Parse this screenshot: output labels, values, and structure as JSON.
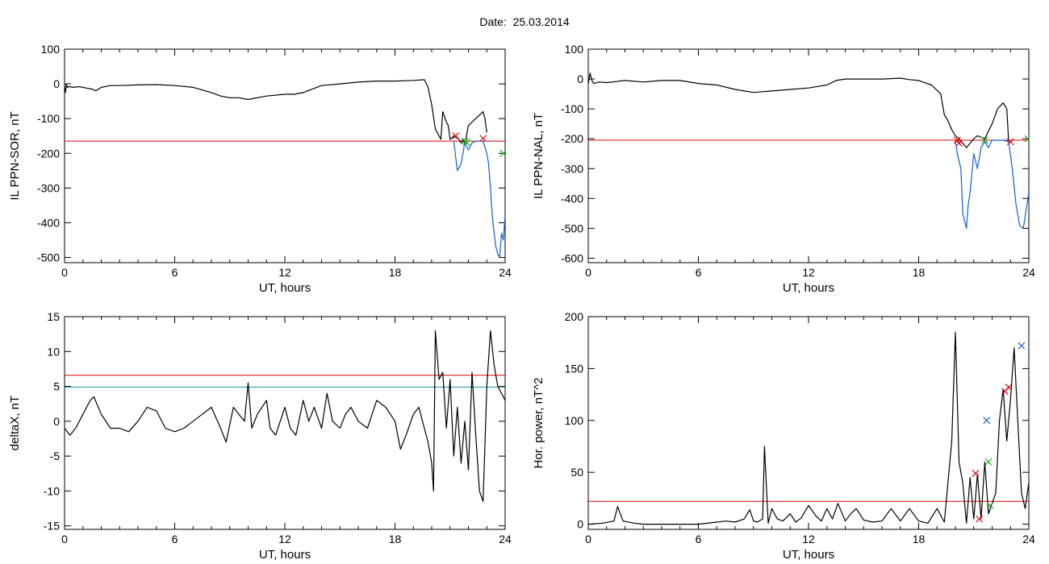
{
  "title": "Date:  25.03.2014",
  "chart_data": [
    {
      "type": "line",
      "xlabel": "UT, hours",
      "ylabel": "IL PPN-SOR, nT",
      "xlim": [
        0,
        24
      ],
      "ylim": [
        -515,
        100
      ],
      "xticks": [
        0,
        6,
        12,
        18,
        24
      ],
      "yticks": [
        100,
        0,
        -100,
        -200,
        -300,
        -400,
        -500
      ],
      "threshold": {
        "value": -165,
        "color": "#e00000"
      },
      "series": [
        {
          "color": "#000000",
          "x": [
            0,
            0.05,
            0.1,
            0.15,
            0.25,
            0.5,
            0.8,
            1.2,
            1.5,
            1.7,
            2.0,
            2.5,
            3,
            4,
            5,
            6,
            7,
            8,
            8.5,
            9,
            9.5,
            10,
            10.5,
            11,
            12,
            12.5,
            13,
            13.5,
            14,
            15,
            16,
            17,
            18,
            19,
            19.6,
            19.8,
            20.0,
            20.2,
            20.4,
            20.5,
            20.6,
            20.8,
            20.9,
            21.0,
            21.2,
            21.5,
            21.6,
            21.7,
            21.8,
            22.0,
            22.2,
            22.4,
            22.5,
            22.7,
            22.8,
            22.9,
            23.0
          ],
          "y": [
            -5,
            -25,
            0,
            -10,
            -8,
            -10,
            -8,
            -12,
            -15,
            -20,
            -10,
            -5,
            -5,
            -3,
            -2,
            -5,
            -10,
            -25,
            -35,
            -40,
            -40,
            -45,
            -40,
            -35,
            -30,
            -30,
            -25,
            -15,
            -5,
            0,
            5,
            8,
            8,
            10,
            12,
            -10,
            -60,
            -130,
            -150,
            -160,
            -80,
            -110,
            -120,
            -160,
            -150,
            -160,
            -170,
            -160,
            -175,
            -120,
            -110,
            -100,
            -95,
            -85,
            -80,
            -100,
            -140
          ]
        },
        {
          "color": "#1060d0",
          "x": [
            21.2,
            21.4,
            21.6,
            21.8,
            22.0,
            22.2,
            22.4,
            22.6,
            22.8,
            23.0,
            23.1,
            23.2,
            23.3,
            23.4,
            23.5,
            23.6,
            23.7,
            23.8,
            23.9,
            24.0
          ],
          "y": [
            -165,
            -250,
            -230,
            -170,
            -190,
            -170,
            -165,
            -165,
            -165,
            -200,
            -230,
            -300,
            -380,
            -430,
            -470,
            -490,
            -500,
            -430,
            -450,
            -380
          ]
        }
      ],
      "markers": [
        {
          "x": 21.3,
          "y": -150,
          "color": "#e00000"
        },
        {
          "x": 21.8,
          "y": -165,
          "color": "#20b020"
        },
        {
          "x": 21.9,
          "y": -168,
          "color": "#20b020"
        },
        {
          "x": 22.8,
          "y": -157,
          "color": "#e00000"
        },
        {
          "x": 23.9,
          "y": -200,
          "color": "#20b020"
        }
      ]
    },
    {
      "type": "line",
      "xlabel": "UT, hours",
      "ylabel": "IL PPN-NAL, nT",
      "xlim": [
        0,
        24
      ],
      "ylim": [
        -615,
        100
      ],
      "xticks": [
        0,
        6,
        12,
        18,
        24
      ],
      "yticks": [
        100,
        0,
        -100,
        -200,
        -300,
        -400,
        -500,
        -600
      ],
      "threshold": {
        "value": -205,
        "color": "#e00000"
      },
      "series": [
        {
          "color": "#000000",
          "x": [
            0,
            0.1,
            0.2,
            0.3,
            0.6,
            1,
            2,
            3,
            4,
            5,
            6,
            7,
            8,
            8.5,
            9,
            10,
            11,
            12,
            12.5,
            13,
            13.5,
            14,
            15,
            16,
            17,
            17.5,
            18,
            18.7,
            19.2,
            19.4,
            19.6,
            19.8,
            20.0,
            20.2,
            20.6,
            21.0,
            21.2,
            21.6,
            22.0,
            22.3,
            22.6,
            22.8,
            22.9
          ],
          "y": [
            -15,
            20,
            -5,
            -15,
            -10,
            -12,
            -5,
            -10,
            -5,
            -5,
            -15,
            -20,
            -35,
            -40,
            -45,
            -40,
            -35,
            -30,
            -25,
            -20,
            -5,
            0,
            0,
            0,
            3,
            -2,
            -5,
            -20,
            -50,
            -120,
            -140,
            -170,
            -190,
            -200,
            -230,
            -200,
            -190,
            -200,
            -150,
            -100,
            -80,
            -100,
            -210
          ]
        },
        {
          "color": "#1060d0",
          "x": [
            20.0,
            20.1,
            20.3,
            20.4,
            20.6,
            20.7,
            20.8,
            21.0,
            21.2,
            21.4,
            21.6,
            21.8,
            22.0,
            22.6,
            22.9,
            23.1,
            23.3,
            23.5,
            23.7,
            23.9,
            24.0
          ],
          "y": [
            -205,
            -250,
            -300,
            -450,
            -500,
            -420,
            -380,
            -250,
            -300,
            -230,
            -210,
            -230,
            -205,
            -205,
            -210,
            -300,
            -420,
            -490,
            -500,
            -420,
            -380
          ]
        }
      ],
      "markers": [
        {
          "x": 20.1,
          "y": -205,
          "color": "#e00000"
        },
        {
          "x": 20.2,
          "y": -215,
          "color": "#e00000"
        },
        {
          "x": 21.6,
          "y": -205,
          "color": "#20b020"
        },
        {
          "x": 23.0,
          "y": -210,
          "color": "#e00000"
        },
        {
          "x": 23.95,
          "y": -200,
          "color": "#20b020"
        }
      ]
    },
    {
      "type": "line",
      "xlabel": "UT, hours",
      "ylabel": "deltaX, nT",
      "xlim": [
        0,
        24
      ],
      "ylim": [
        -15.5,
        15
      ],
      "xticks": [
        0,
        6,
        12,
        18,
        24
      ],
      "yticks": [
        15,
        10,
        5,
        0,
        -5,
        -10,
        -15
      ],
      "thresholds": [
        {
          "value": 6.6,
          "color": "#e00000"
        },
        {
          "value": 4.9,
          "color": "#2090a0"
        }
      ],
      "series": [
        {
          "color": "#000000",
          "x": [
            0,
            0.3,
            0.6,
            1.0,
            1.4,
            1.6,
            2.0,
            2.5,
            3.0,
            3.5,
            4.0,
            4.5,
            5.0,
            5.5,
            6.0,
            6.5,
            7.0,
            7.5,
            8.0,
            8.5,
            8.8,
            9.2,
            9.5,
            9.8,
            10.0,
            10.2,
            10.5,
            11.0,
            11.2,
            11.5,
            12.0,
            12.3,
            12.6,
            13.0,
            13.3,
            13.6,
            14.0,
            14.3,
            14.6,
            15.0,
            15.3,
            15.6,
            16.0,
            16.5,
            17.0,
            17.5,
            18.0,
            18.3,
            18.6,
            19.0,
            19.3,
            19.6,
            19.8,
            20.0,
            20.1,
            20.2,
            20.4,
            20.6,
            20.8,
            21.0,
            21.2,
            21.4,
            21.6,
            21.8,
            22.0,
            22.2,
            22.4,
            22.6,
            22.8,
            23.0,
            23.2,
            23.4,
            23.6,
            23.8,
            24.0
          ],
          "y": [
            -1,
            -2,
            -1,
            1,
            3,
            3.5,
            1,
            -1,
            -1,
            -1.5,
            0,
            2,
            1.5,
            -1,
            -1.5,
            -1,
            0,
            1,
            2,
            -1,
            -3,
            2,
            1,
            0,
            5.5,
            -1,
            1,
            3,
            -1,
            -2,
            2,
            -1,
            -2,
            3,
            0,
            2,
            -1,
            4,
            0,
            -1,
            1,
            2,
            0,
            -1,
            3,
            2,
            0,
            -4,
            -2,
            1,
            2,
            -1,
            -3,
            -6,
            -10,
            13,
            6,
            7,
            -1,
            6,
            -5,
            2,
            -6,
            0,
            -7,
            7,
            -2,
            -10,
            -11.5,
            5,
            13,
            8,
            5,
            4,
            3
          ]
        }
      ],
      "markers": []
    },
    {
      "type": "line",
      "xlabel": "UT, hours",
      "ylabel": "Hor. power, nT^2",
      "xlim": [
        0,
        24
      ],
      "ylim": [
        -5,
        200
      ],
      "xticks": [
        0,
        6,
        12,
        18,
        24
      ],
      "yticks": [
        200,
        150,
        100,
        50,
        0
      ],
      "threshold": {
        "value": 22,
        "color": "#e00000"
      },
      "series": [
        {
          "color": "#000000",
          "x": [
            0,
            0.8,
            1.4,
            1.6,
            1.9,
            2.5,
            3,
            4,
            5,
            6,
            7,
            7.5,
            8,
            8.5,
            8.8,
            9.0,
            9.2,
            9.5,
            9.6,
            9.8,
            10.0,
            10.3,
            10.6,
            11.0,
            11.3,
            11.6,
            12.0,
            12.4,
            12.7,
            13.0,
            13.3,
            13.6,
            14.0,
            14.3,
            14.6,
            15.0,
            15.5,
            16.0,
            16.5,
            17.0,
            17.5,
            18.0,
            18.5,
            19.0,
            19.4,
            19.8,
            20.0,
            20.2,
            20.4,
            20.6,
            20.8,
            21.0,
            21.2,
            21.4,
            21.6,
            21.8,
            22.0,
            22.2,
            22.4,
            22.6,
            22.8,
            23.0,
            23.2,
            23.4,
            23.6,
            23.8,
            24.0
          ],
          "y": [
            0,
            1,
            3,
            17,
            3,
            1,
            0,
            0,
            0,
            0,
            2,
            3,
            2,
            5,
            14,
            3,
            2,
            5,
            75,
            1,
            15,
            5,
            3,
            10,
            2,
            6,
            18,
            8,
            3,
            15,
            5,
            20,
            3,
            10,
            15,
            4,
            2,
            3,
            15,
            3,
            15,
            3,
            1,
            15,
            2,
            80,
            185,
            60,
            40,
            1,
            45,
            5,
            48,
            5,
            60,
            10,
            20,
            30,
            100,
            130,
            80,
            120,
            170,
            100,
            30,
            15,
            40
          ]
        }
      ],
      "markers": [
        {
          "x": 21.1,
          "y": 49,
          "color": "#e00000"
        },
        {
          "x": 21.3,
          "y": 5,
          "color": "#e00000"
        },
        {
          "x": 21.7,
          "y": 100,
          "color": "#2060d0"
        },
        {
          "x": 21.8,
          "y": 60,
          "color": "#20b020"
        },
        {
          "x": 21.9,
          "y": 18,
          "color": "#20b020"
        },
        {
          "x": 22.7,
          "y": 128,
          "color": "#e00000"
        },
        {
          "x": 22.9,
          "y": 132,
          "color": "#e00000"
        },
        {
          "x": 23.6,
          "y": 172,
          "color": "#2060d0"
        }
      ]
    }
  ]
}
